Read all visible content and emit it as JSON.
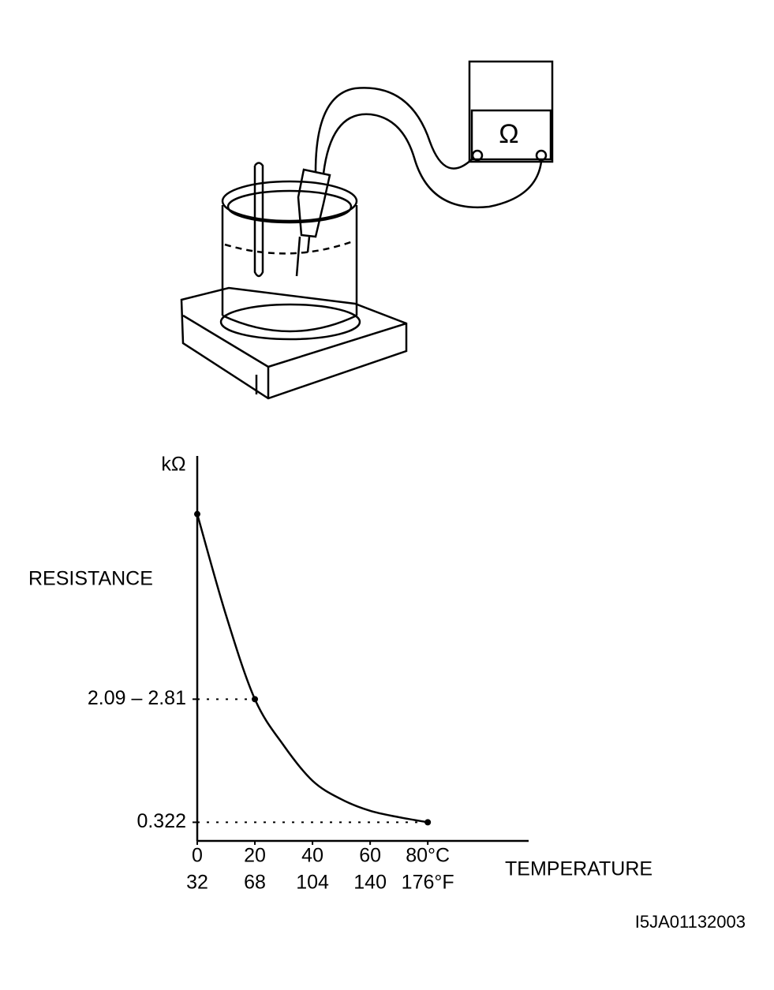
{
  "illustration": {
    "meter_symbol": "Ω"
  },
  "chart_data": {
    "type": "line",
    "y_unit": "kΩ",
    "y_label": "RESISTANCE",
    "x_label": "TEMPERATURE",
    "x": [
      0,
      10,
      20,
      30,
      40,
      50,
      60,
      70,
      80
    ],
    "values": [
      5.65,
      3.9,
      2.45,
      1.65,
      1.04,
      0.72,
      0.52,
      0.41,
      0.322
    ],
    "markers": [
      0,
      20,
      80
    ],
    "color": "#000000",
    "xlim": [
      0,
      115
    ],
    "ylim": [
      0,
      6.6
    ],
    "xticks": [
      0,
      20,
      40,
      60,
      {
        "value": 80,
        "label": "80°C"
      }
    ],
    "x2ticks": [
      {
        "value": 0,
        "label": "32"
      },
      {
        "value": 20,
        "label": "68"
      },
      {
        "value": 40,
        "label": "104"
      },
      {
        "value": 60,
        "label": "140"
      },
      {
        "value": 80,
        "label": "176°F"
      }
    ],
    "yticks": [
      {
        "value": 2.45,
        "label": "2.09 – 2.81"
      },
      0.322
    ],
    "figure_id": "I5JA01132003"
  }
}
